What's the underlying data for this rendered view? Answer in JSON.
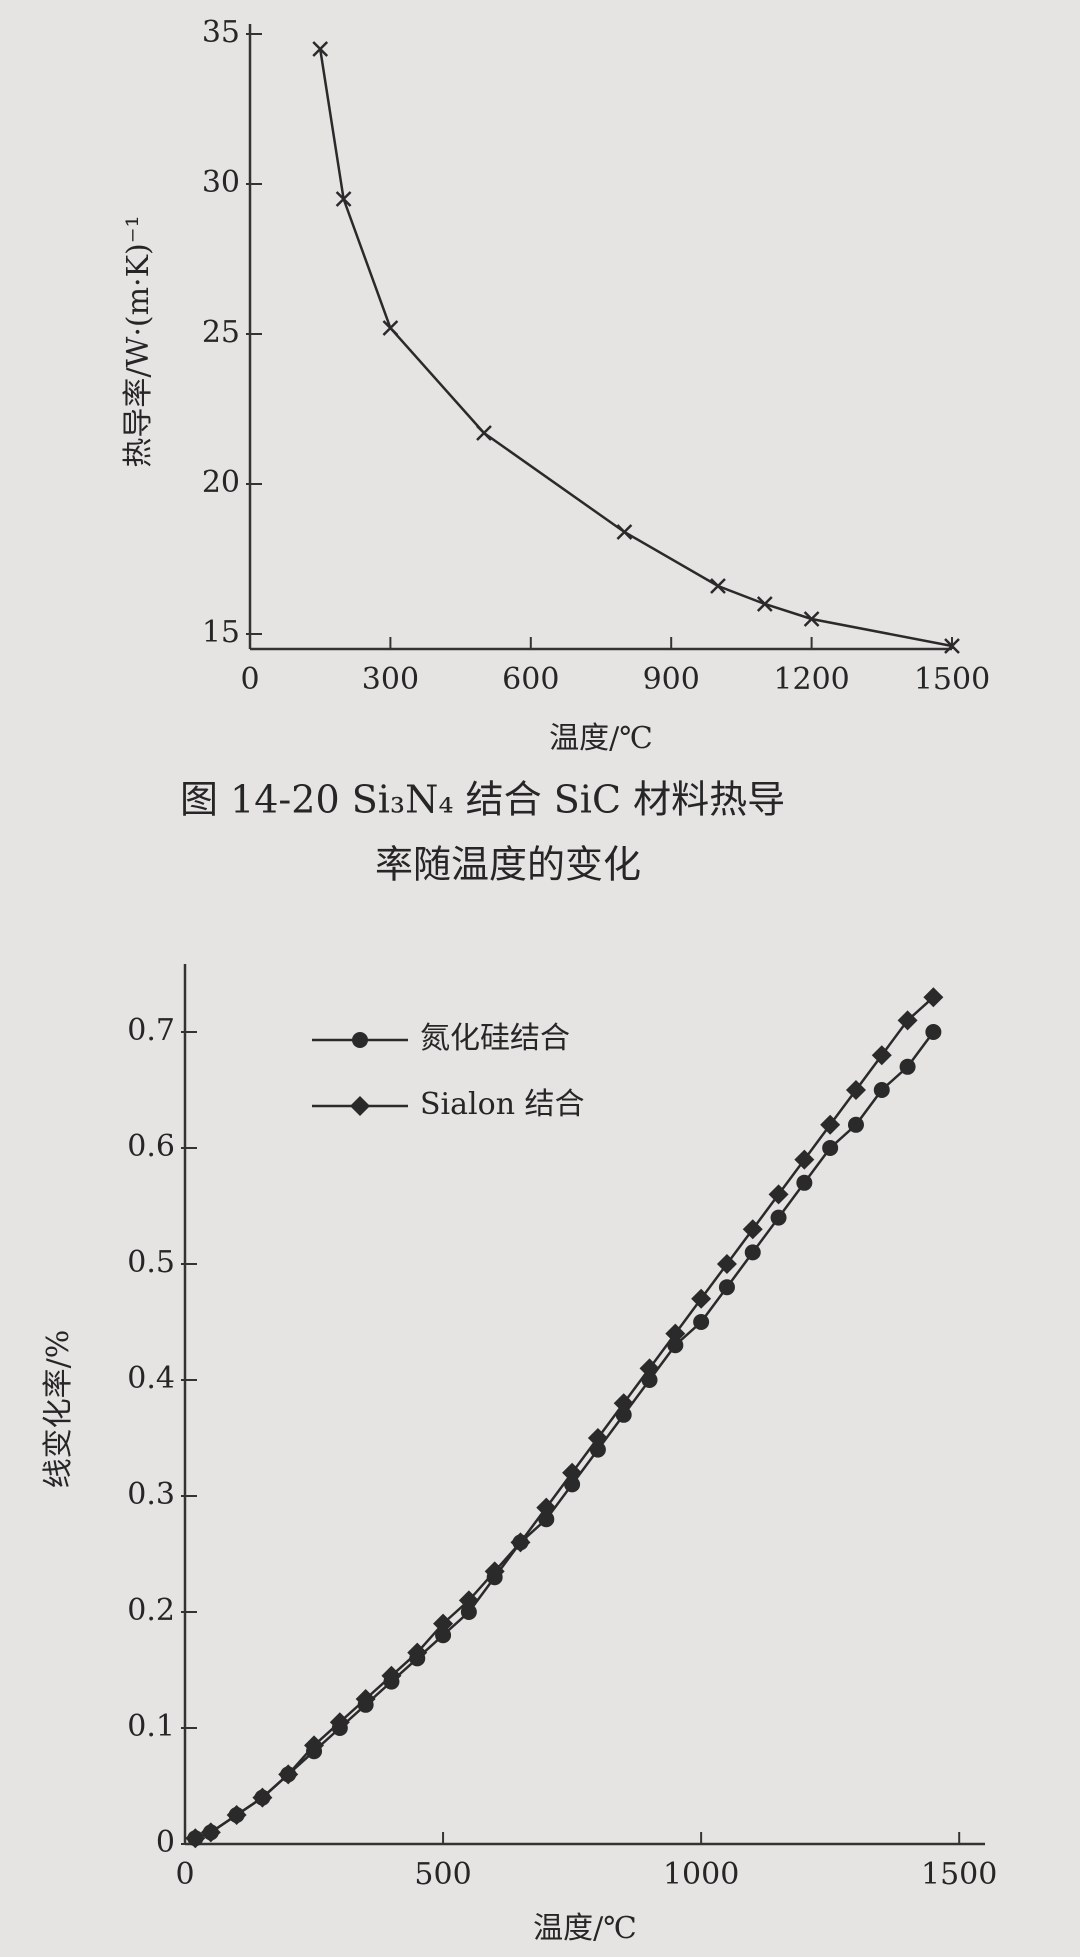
{
  "chart_data": [
    {
      "type": "line",
      "x_label": "温度/℃",
      "y_label": "热导率/W·(m·K)⁻¹",
      "caption": [
        "图 14-20    Si₃N₄ 结合 SiC 材料热导",
        "率随温度的变化"
      ],
      "x": [
        150,
        200,
        300,
        500,
        800,
        1000,
        1100,
        1200,
        1500
      ],
      "values": [
        34.5,
        29.5,
        25.2,
        21.7,
        18.4,
        16.6,
        16.0,
        15.5,
        14.6
      ],
      "marker": "x",
      "color": "#2a2a2a",
      "xlim": [
        0,
        1500
      ],
      "xticks": [
        0,
        300,
        600,
        900,
        1200,
        1500
      ],
      "ylim": [
        14.5,
        35
      ],
      "yticks": [
        15,
        20,
        25,
        30,
        35
      ]
    },
    {
      "type": "line",
      "x_label": "温度/℃",
      "y_label": "线变化率/%",
      "x": [
        20,
        50,
        100,
        150,
        200,
        250,
        300,
        350,
        400,
        450,
        500,
        550,
        600,
        650,
        700,
        750,
        800,
        850,
        900,
        950,
        1000,
        1050,
        1100,
        1150,
        1200,
        1250,
        1300,
        1350,
        1400,
        1450
      ],
      "series": [
        {
          "name": "氮化硅结合",
          "marker": "o",
          "color": "#2a2a2a",
          "values": [
            0.005,
            0.01,
            0.025,
            0.04,
            0.06,
            0.08,
            0.1,
            0.12,
            0.14,
            0.16,
            0.18,
            0.2,
            0.23,
            0.26,
            0.28,
            0.31,
            0.34,
            0.37,
            0.4,
            0.43,
            0.45,
            0.48,
            0.51,
            0.54,
            0.57,
            0.6,
            0.62,
            0.65,
            0.67,
            0.7
          ]
        },
        {
          "name": "Sialon 结合",
          "marker": "D",
          "color": "#2a2a2a",
          "values": [
            0.005,
            0.01,
            0.025,
            0.04,
            0.06,
            0.085,
            0.105,
            0.125,
            0.145,
            0.165,
            0.19,
            0.21,
            0.235,
            0.26,
            0.29,
            0.32,
            0.35,
            0.38,
            0.41,
            0.44,
            0.47,
            0.5,
            0.53,
            0.56,
            0.59,
            0.62,
            0.65,
            0.68,
            0.71,
            0.73
          ]
        }
      ],
      "xlim": [
        0,
        1550
      ],
      "xticks": [
        0,
        500,
        1000,
        1500
      ],
      "ylim": [
        0,
        0.75
      ],
      "yticks": [
        0,
        0.1,
        0.2,
        0.3,
        0.4,
        0.5,
        0.6,
        0.7
      ],
      "legend": "upper left"
    }
  ]
}
